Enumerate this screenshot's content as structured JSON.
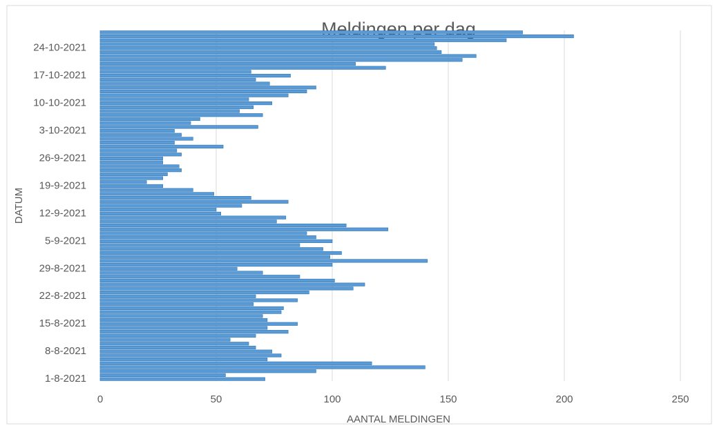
{
  "chart_data": {
    "type": "barh",
    "title": "Meldingen per dag",
    "x_label": "AANTAL MELDINGEN",
    "y_label": "DATUM",
    "categories": [
      "1-8-2021",
      null,
      null,
      null,
      null,
      null,
      null,
      "8-8-2021",
      null,
      null,
      null,
      null,
      null,
      null,
      "15-8-2021",
      null,
      null,
      null,
      null,
      null,
      null,
      "22-8-2021",
      null,
      null,
      null,
      null,
      null,
      null,
      "29-8-2021",
      null,
      null,
      null,
      null,
      null,
      null,
      "5-9-2021",
      null,
      null,
      null,
      null,
      null,
      null,
      "12-9-2021",
      null,
      null,
      null,
      null,
      null,
      null,
      "19-9-2021",
      null,
      null,
      null,
      null,
      null,
      null,
      "26-9-2021",
      null,
      null,
      null,
      null,
      null,
      null,
      "3-10-2021",
      null,
      null,
      null,
      null,
      null,
      null,
      "10-10-2021",
      null,
      null,
      null,
      null,
      null,
      null,
      "17-10-2021",
      null,
      null,
      null,
      null,
      null,
      null,
      "24-10-2021",
      null,
      null,
      null,
      null
    ],
    "values": [
      71,
      54,
      93,
      140,
      117,
      72,
      78,
      74,
      67,
      64,
      56,
      67,
      81,
      72,
      85,
      72,
      70,
      78,
      79,
      66,
      85,
      67,
      90,
      109,
      114,
      101,
      86,
      70,
      59,
      100,
      141,
      99,
      104,
      96,
      86,
      100,
      93,
      89,
      124,
      106,
      76,
      80,
      52,
      50,
      61,
      81,
      65,
      49,
      40,
      27,
      20,
      27,
      29,
      35,
      34,
      27,
      27,
      35,
      33,
      53,
      32,
      40,
      35,
      32,
      68,
      39,
      43,
      70,
      60,
      66,
      74,
      64,
      81,
      89,
      93,
      73,
      67,
      82,
      65,
      123,
      110,
      156,
      162,
      147,
      145,
      144,
      175,
      204,
      182
    ],
    "color": "#5b9bd5",
    "xlim": [
      0,
      250
    ],
    "xticks": [
      0,
      50,
      100,
      150,
      200,
      250
    ],
    "grid": true
  }
}
